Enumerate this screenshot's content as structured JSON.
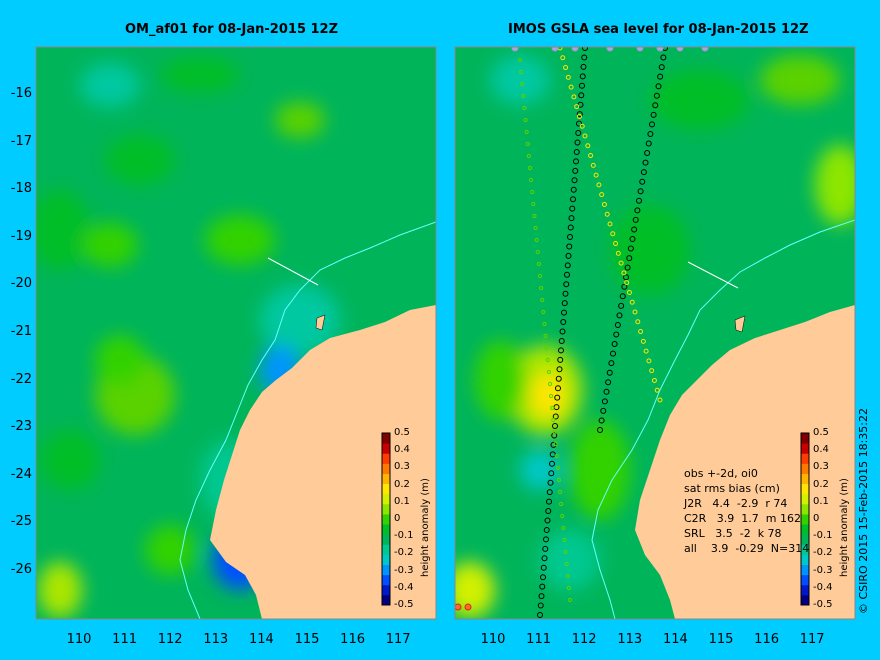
{
  "left_panel": {
    "title": "OM_af01 for 08-Jan-2015 12Z"
  },
  "right_panel": {
    "title": "IMOS GSLA sea level  for 08-Jan-2015 12Z"
  },
  "y_ticks": [
    "-16",
    "-17",
    "-18",
    "-19",
    "-20",
    "-21",
    "-22",
    "-23",
    "-24",
    "-25",
    "-26"
  ],
  "x_ticks": [
    "110",
    "111",
    "112",
    "113",
    "114",
    "115",
    "116",
    "117"
  ],
  "colorbar": {
    "label": "height anomaly (m)",
    "ticks": [
      "0.5",
      "0.4",
      "0.3",
      "0.2",
      "0.1",
      "0",
      "-0.1",
      "-0.2",
      "-0.3",
      "-0.4",
      "-0.5"
    ],
    "colors": [
      "#000080",
      "#0018c8",
      "#0050ff",
      "#0094ff",
      "#00c8c8",
      "#00c890",
      "#00b45a",
      "#00be28",
      "#32d200",
      "#8ce600",
      "#d2f000",
      "#ffe600",
      "#ffb400",
      "#ff7800",
      "#ff3c00",
      "#c80000",
      "#800000"
    ]
  },
  "stats": {
    "header1": "obs +-2d, oi0",
    "header2": "sat rms bias (cm)",
    "rows": [
      "J2R   4.4  -2.9  r 74",
      "C2R   3.9  1.7  m 162",
      "SRL   3.5  -2  k 78",
      "all    3.9  -0.29  N=314"
    ]
  },
  "credit": "© CSIRO 2015   15-Feb-2015 18:35:22",
  "colors": {
    "background": "#00ccff",
    "land": "#ffcc99",
    "ocean_base": "#00b45a",
    "coastline_current": "#66ffff"
  }
}
